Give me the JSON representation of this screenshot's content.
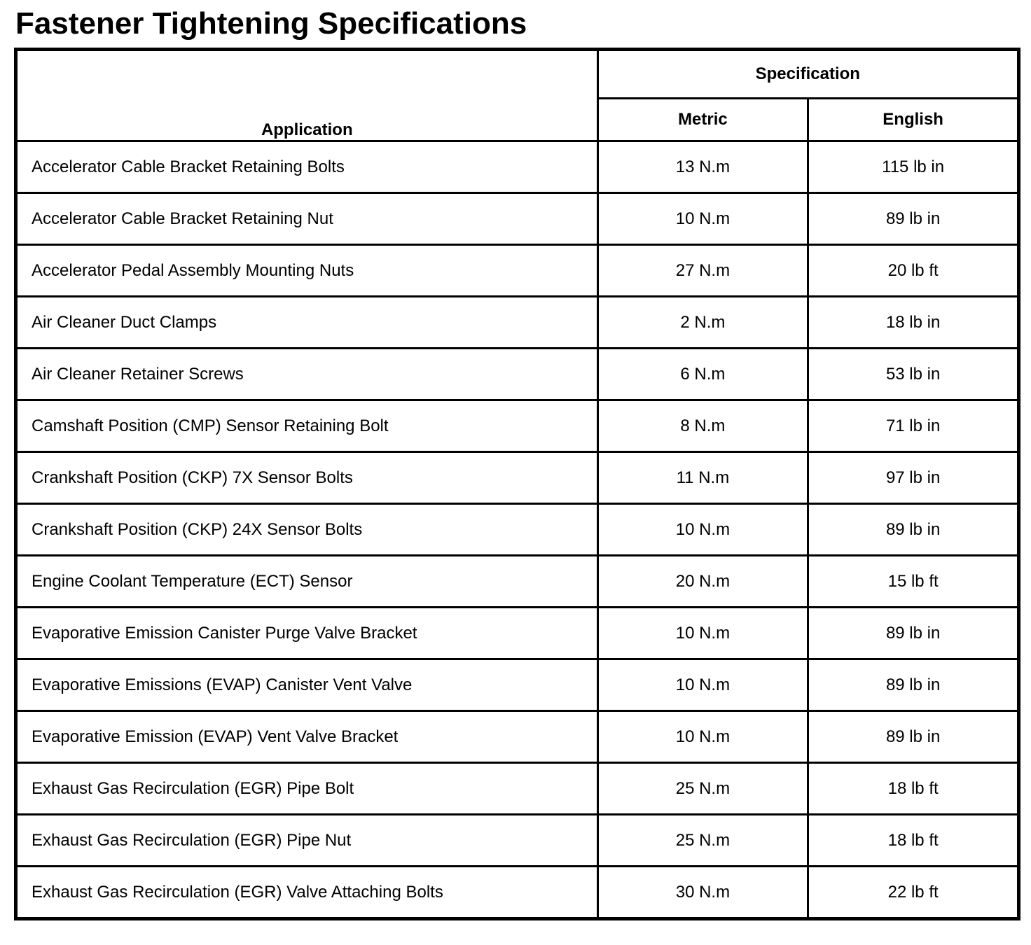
{
  "title": "Fastener Tightening Specifications",
  "table": {
    "headers": {
      "application": "Application",
      "specification": "Specification",
      "metric": "Metric",
      "english": "English"
    },
    "rows": [
      {
        "application": "Accelerator Cable Bracket Retaining Bolts",
        "metric": "13 N.m",
        "english": "115 lb in"
      },
      {
        "application": "Accelerator Cable Bracket Retaining Nut",
        "metric": "10 N.m",
        "english": "89 lb in"
      },
      {
        "application": "Accelerator Pedal Assembly Mounting Nuts",
        "metric": "27 N.m",
        "english": "20 lb ft"
      },
      {
        "application": "Air Cleaner Duct Clamps",
        "metric": "2 N.m",
        "english": "18 lb in"
      },
      {
        "application": "Air Cleaner Retainer Screws",
        "metric": "6 N.m",
        "english": "53 lb in"
      },
      {
        "application": "Camshaft Position (CMP) Sensor Retaining Bolt",
        "metric": "8 N.m",
        "english": "71 lb in"
      },
      {
        "application": "Crankshaft Position (CKP) 7X Sensor Bolts",
        "metric": "11 N.m",
        "english": "97 lb in"
      },
      {
        "application": "Crankshaft Position (CKP) 24X Sensor Bolts",
        "metric": "10 N.m",
        "english": "89 lb in"
      },
      {
        "application": "Engine Coolant Temperature (ECT) Sensor",
        "metric": "20 N.m",
        "english": "15 lb ft"
      },
      {
        "application": "Evaporative Emission Canister Purge Valve Bracket",
        "metric": "10 N.m",
        "english": "89 lb in"
      },
      {
        "application": "Evaporative Emissions (EVAP) Canister Vent Valve",
        "metric": "10 N.m",
        "english": "89 lb in"
      },
      {
        "application": "Evaporative Emission (EVAP) Vent Valve Bracket",
        "metric": "10 N.m",
        "english": "89 lb in"
      },
      {
        "application": "Exhaust Gas Recirculation (EGR) Pipe Bolt",
        "metric": "25 N.m",
        "english": "18 lb ft"
      },
      {
        "application": "Exhaust Gas Recirculation (EGR) Pipe Nut",
        "metric": "25 N.m",
        "english": "18 lb ft"
      },
      {
        "application": "Exhaust Gas Recirculation (EGR) Valve Attaching Bolts",
        "metric": "30 N.m",
        "english": "22 lb ft"
      }
    ]
  }
}
